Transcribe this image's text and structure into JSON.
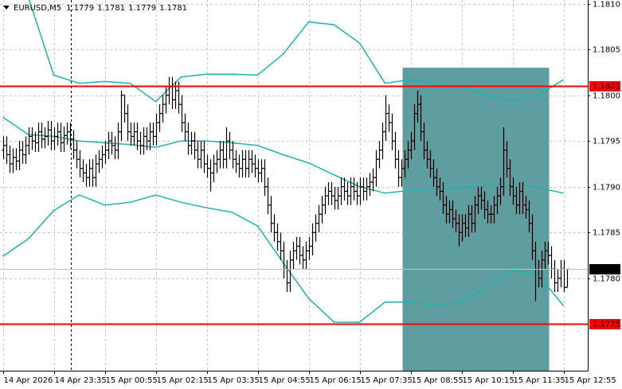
{
  "chart_data": {
    "type": "ohlc",
    "title": "EURUSD,M5",
    "color": "#000000",
    "grid": true,
    "ylim": [
      1.17699,
      1.18104
    ],
    "yticks": [
      {
        "value": 1.178,
        "label": "1.1780"
      },
      1.1785,
      {
        "value": 1.179,
        "label": "1.1790"
      },
      1.1795,
      {
        "value": 1.18,
        "label": "1.1800"
      },
      1.1805,
      {
        "value": 1.181,
        "label": "1.1810"
      }
    ],
    "categories": [
      "14 Apr 2026",
      null,
      null,
      null,
      null,
      null,
      null,
      null,
      null,
      null,
      null,
      null,
      null,
      null,
      null,
      null,
      "14 Apr 23:35",
      null,
      null,
      null,
      null,
      null,
      null,
      null,
      null,
      null,
      null,
      null,
      null,
      null,
      null,
      null,
      "15 Apr 00:55",
      null,
      null,
      null,
      null,
      null,
      null,
      null,
      null,
      null,
      null,
      null,
      null,
      null,
      null,
      null,
      "15 Apr 02:15",
      null,
      null,
      null,
      null,
      null,
      null,
      null,
      null,
      null,
      null,
      null,
      null,
      null,
      null,
      null,
      "15 Apr 03:35",
      null,
      null,
      null,
      null,
      null,
      null,
      null,
      null,
      null,
      null,
      null,
      null,
      null,
      null,
      null,
      "15 Apr 04:55",
      null,
      null,
      null,
      null,
      null,
      null,
      null,
      null,
      null,
      null,
      null,
      null,
      null,
      null,
      null,
      "15 Apr 06:15",
      null,
      null,
      null,
      null,
      null,
      null,
      null,
      null,
      null,
      null,
      null,
      null,
      null,
      null,
      null,
      "15 Apr 07:35",
      null,
      null,
      null,
      null,
      null,
      null,
      null,
      null,
      null,
      null,
      null,
      null,
      null,
      null,
      null,
      "15 Apr 08:55",
      null,
      null,
      null,
      null,
      null,
      null,
      null,
      null,
      null,
      null,
      null,
      null,
      null,
      null,
      null,
      "15 Apr 10:15",
      null,
      null,
      null,
      null,
      null,
      null,
      null,
      null,
      null,
      null,
      null,
      null,
      null,
      null,
      null,
      "15 Apr 11:35",
      null,
      null,
      null,
      null,
      null,
      null,
      null,
      null,
      null,
      null,
      null,
      null,
      null,
      null,
      null,
      "15 Apr 12:55",
      null
    ],
    "open": [
      1.1794,
      1.17945,
      1.17935,
      1.17925,
      1.17932,
      1.17928,
      1.1794,
      1.17935,
      1.17945,
      1.17955,
      1.1795,
      1.17948,
      1.1796,
      1.17952,
      1.17955,
      1.17962,
      1.1795,
      1.17955,
      1.1796,
      1.17948,
      1.17956,
      1.1796,
      1.17952,
      1.1794,
      1.1793,
      1.1792,
      1.17915,
      1.1791,
      1.1792,
      1.1791,
      1.17925,
      1.1793,
      1.17935,
      1.1794,
      1.1795,
      1.17945,
      1.1794,
      1.1796,
      1.18,
      1.1798,
      1.1796,
      1.17955,
      1.1796,
      1.1795,
      1.17945,
      1.17955,
      1.1795,
      1.1796,
      1.17955,
      1.1797,
      1.1798,
      1.1799,
      1.18,
      1.1801,
      1.17995,
      1.18005,
      1.1799,
      1.1797,
      1.1796,
      1.17945,
      1.1795,
      1.1794,
      1.1793,
      1.1794,
      1.17925,
      1.1792,
      1.17915,
      1.17925,
      1.1793,
      1.1794,
      1.1793,
      1.1795,
      1.1794,
      1.1793,
      1.17925,
      1.1792,
      1.1793,
      1.1792,
      1.1793,
      1.17925,
      1.1792,
      1.17915,
      1.1792,
      1.179,
      1.1788,
      1.1786,
      1.1785,
      1.1784,
      1.1783,
      1.1781,
      1.17795,
      1.1782,
      1.1783,
      1.17835,
      1.17825,
      1.1782,
      1.1783,
      1.17835,
      1.1785,
      1.1786,
      1.1787,
      1.1788,
      1.1789,
      1.17895,
      1.1789,
      1.17885,
      1.1789,
      1.179,
      1.17895,
      1.1789,
      1.179,
      1.17895,
      1.1789,
      1.179,
      1.17895,
      1.179,
      1.17905,
      1.1791,
      1.1793,
      1.1794,
      1.1796,
      1.1798,
      1.1797,
      1.1795,
      1.1793,
      1.1791,
      1.1792,
      1.1793,
      1.1794,
      1.1795,
      1.1798,
      1.1799,
      1.1796,
      1.1794,
      1.1793,
      1.1792,
      1.1791,
      1.179,
      1.17895,
      1.1788,
      1.1787,
      1.17875,
      1.17865,
      1.1786,
      1.1785,
      1.1786,
      1.17855,
      1.1787,
      1.1786,
      1.1788,
      1.1789,
      1.17885,
      1.17875,
      1.1787,
      1.1787,
      1.1788,
      1.1789,
      1.179,
      1.1794,
      1.1792,
      1.179,
      1.1789,
      1.1788,
      1.17895,
      1.1788,
      1.17875,
      1.1786,
      1.1783,
      1.1781,
      1.178,
      1.1782,
      1.1783,
      1.17825,
      1.1781,
      1.17795,
      1.178,
      1.1781,
      1.1779
    ],
    "high": [
      1.17955,
      1.17955,
      1.17945,
      1.17942,
      1.17942,
      1.1795,
      1.1795,
      1.17955,
      1.17965,
      1.17965,
      1.1796,
      1.1797,
      1.1797,
      1.17965,
      1.17972,
      1.17972,
      1.17965,
      1.1797,
      1.1797,
      1.17966,
      1.1797,
      1.1797,
      1.17962,
      1.1795,
      1.1794,
      1.1793,
      1.17925,
      1.1793,
      1.1793,
      1.17935,
      1.1794,
      1.17945,
      1.1795,
      1.1796,
      1.1796,
      1.17955,
      1.1797,
      1.18005,
      1.18,
      1.1799,
      1.1797,
      1.1797,
      1.1797,
      1.1796,
      1.17965,
      1.17965,
      1.1797,
      1.1797,
      1.1798,
      1.1799,
      1.18,
      1.1801,
      1.1802,
      1.1802,
      1.18015,
      1.18015,
      1.18,
      1.1798,
      1.1797,
      1.1796,
      1.1796,
      1.1795,
      1.1795,
      1.1795,
      1.17935,
      1.1793,
      1.17935,
      1.1794,
      1.1795,
      1.1795,
      1.17965,
      1.1796,
      1.1795,
      1.1794,
      1.17935,
      1.1794,
      1.1794,
      1.1794,
      1.1794,
      1.17935,
      1.1793,
      1.1793,
      1.1793,
      1.1791,
      1.1789,
      1.1787,
      1.1786,
      1.1785,
      1.1784,
      1.1782,
      1.1783,
      1.1784,
      1.17845,
      1.17845,
      1.17835,
      1.1784,
      1.17845,
      1.1786,
      1.1787,
      1.1788,
      1.1789,
      1.179,
      1.17905,
      1.17905,
      1.179,
      1.179,
      1.1791,
      1.1791,
      1.17905,
      1.1791,
      1.1791,
      1.17905,
      1.1791,
      1.1791,
      1.1791,
      1.17915,
      1.1792,
      1.1794,
      1.1795,
      1.1797,
      1.18,
      1.1799,
      1.1798,
      1.1796,
      1.1794,
      1.1793,
      1.1794,
      1.1795,
      1.1796,
      1.1799,
      1.18005,
      1.18,
      1.1797,
      1.1795,
      1.1794,
      1.1793,
      1.1792,
      1.1791,
      1.17905,
      1.1789,
      1.17885,
      1.17885,
      1.17875,
      1.1787,
      1.1787,
      1.1787,
      1.1788,
      1.1788,
      1.1789,
      1.179,
      1.179,
      1.17895,
      1.17885,
      1.1788,
      1.1789,
      1.179,
      1.1791,
      1.17965,
      1.1795,
      1.1793,
      1.1791,
      1.179,
      1.17905,
      1.17905,
      1.1789,
      1.17885,
      1.1787,
      1.1784,
      1.1782,
      1.1783,
      1.1784,
      1.1784,
      1.17835,
      1.1782,
      1.1781,
      1.1782,
      1.1782,
      1.1781
    ],
    "low": [
      1.1793,
      1.17925,
      1.17915,
      1.17915,
      1.17918,
      1.17918,
      1.17925,
      1.17925,
      1.17935,
      1.1794,
      1.17938,
      1.17938,
      1.17942,
      1.17942,
      1.17945,
      1.1794,
      1.1794,
      1.17945,
      1.17938,
      1.17938,
      1.17946,
      1.17942,
      1.1793,
      1.1792,
      1.1791,
      1.17905,
      1.179,
      1.179,
      1.179,
      1.179,
      1.17915,
      1.1792,
      1.17925,
      1.1793,
      1.17935,
      1.1793,
      1.1793,
      1.1795,
      1.1797,
      1.1795,
      1.17945,
      1.17945,
      1.1794,
      1.17935,
      1.17935,
      1.1794,
      1.1794,
      1.17945,
      1.17945,
      1.1796,
      1.1797,
      1.1798,
      1.1799,
      1.17985,
      1.17985,
      1.1798,
      1.1796,
      1.1795,
      1.17935,
      1.17935,
      1.1793,
      1.1792,
      1.1792,
      1.17915,
      1.1791,
      1.17895,
      1.17905,
      1.17915,
      1.1792,
      1.1792,
      1.1792,
      1.1793,
      1.1792,
      1.17915,
      1.1791,
      1.1791,
      1.1791,
      1.1791,
      1.17915,
      1.1791,
      1.17905,
      1.17905,
      1.1789,
      1.1787,
      1.1785,
      1.1784,
      1.1783,
      1.1782,
      1.178,
      1.17785,
      1.17785,
      1.1781,
      1.1782,
      1.17815,
      1.1781,
      1.1781,
      1.1782,
      1.17825,
      1.1784,
      1.1785,
      1.1786,
      1.1787,
      1.1788,
      1.1788,
      1.17875,
      1.17875,
      1.1788,
      1.17885,
      1.1788,
      1.1788,
      1.17885,
      1.1788,
      1.1788,
      1.17885,
      1.17885,
      1.1789,
      1.17895,
      1.179,
      1.1792,
      1.1793,
      1.1795,
      1.1796,
      1.1794,
      1.1792,
      1.179,
      1.179,
      1.1791,
      1.1792,
      1.1793,
      1.1794,
      1.1797,
      1.1795,
      1.1793,
      1.1792,
      1.1791,
      1.179,
      1.1789,
      1.17885,
      1.1787,
      1.1786,
      1.1786,
      1.17855,
      1.1785,
      1.17835,
      1.1784,
      1.17845,
      1.17845,
      1.1785,
      1.1785,
      1.1787,
      1.17875,
      1.17865,
      1.1786,
      1.1786,
      1.1786,
      1.1787,
      1.1788,
      1.1789,
      1.1791,
      1.1789,
      1.1788,
      1.1787,
      1.1787,
      1.1787,
      1.17865,
      1.1785,
      1.1782,
      1.17775,
      1.1779,
      1.1779,
      1.1781,
      1.17815,
      1.178,
      1.17785,
      1.17785,
      1.1779,
      1.17785,
      1.1779
    ],
    "close": [
      1.17945,
      1.17935,
      1.17925,
      1.17932,
      1.17928,
      1.1794,
      1.17935,
      1.17945,
      1.17955,
      1.1795,
      1.17948,
      1.1796,
      1.17952,
      1.17955,
      1.17962,
      1.1795,
      1.17955,
      1.1796,
      1.17948,
      1.17956,
      1.1796,
      1.17952,
      1.1794,
      1.1793,
      1.1792,
      1.17915,
      1.1791,
      1.1792,
      1.1791,
      1.17925,
      1.1793,
      1.17935,
      1.1794,
      1.1795,
      1.17945,
      1.1794,
      1.1796,
      1.18,
      1.1798,
      1.1796,
      1.17955,
      1.1796,
      1.1795,
      1.17945,
      1.17955,
      1.1795,
      1.1796,
      1.17955,
      1.1797,
      1.1798,
      1.1799,
      1.18,
      1.1801,
      1.17995,
      1.18005,
      1.1799,
      1.1797,
      1.1796,
      1.17945,
      1.1795,
      1.1794,
      1.1793,
      1.1794,
      1.17925,
      1.1792,
      1.17915,
      1.17925,
      1.1793,
      1.1794,
      1.1793,
      1.1795,
      1.1794,
      1.1793,
      1.17925,
      1.1792,
      1.1793,
      1.1792,
      1.1793,
      1.17925,
      1.1792,
      1.17915,
      1.1792,
      1.179,
      1.1788,
      1.1786,
      1.1785,
      1.1784,
      1.1783,
      1.1781,
      1.17795,
      1.1782,
      1.1783,
      1.17835,
      1.17825,
      1.1782,
      1.1783,
      1.17835,
      1.1785,
      1.1786,
      1.1787,
      1.1788,
      1.1789,
      1.17895,
      1.1789,
      1.17885,
      1.1789,
      1.179,
      1.17895,
      1.1789,
      1.179,
      1.17895,
      1.1789,
      1.179,
      1.17895,
      1.179,
      1.17905,
      1.1791,
      1.1793,
      1.1794,
      1.1796,
      1.1798,
      1.1797,
      1.1795,
      1.1793,
      1.1791,
      1.1792,
      1.1793,
      1.1794,
      1.1795,
      1.1798,
      1.1799,
      1.1796,
      1.1794,
      1.1793,
      1.1792,
      1.1791,
      1.179,
      1.17895,
      1.1788,
      1.1787,
      1.17875,
      1.17865,
      1.1786,
      1.1785,
      1.1786,
      1.17855,
      1.1787,
      1.1786,
      1.1788,
      1.1789,
      1.17885,
      1.17875,
      1.1787,
      1.1787,
      1.1788,
      1.1789,
      1.179,
      1.1794,
      1.1792,
      1.179,
      1.1789,
      1.1788,
      1.17895,
      1.1788,
      1.17875,
      1.1786,
      1.1783,
      1.1781,
      1.178,
      1.1782,
      1.1783,
      1.17825,
      1.1781,
      1.17795,
      1.178,
      1.1781,
      1.1779,
      1.1781
    ],
    "bands": {
      "color": "#20b2aa",
      "x": [
        0,
        8,
        16,
        24,
        32,
        40,
        48,
        56,
        64,
        72,
        80,
        88,
        96,
        104,
        112,
        120,
        128,
        136,
        144,
        152,
        160,
        168,
        176
      ],
      "upper": [
        1.18139,
        1.18107,
        1.18022,
        1.18013,
        1.18015,
        1.18013,
        1.17993,
        1.1802,
        1.18023,
        1.18023,
        1.18022,
        1.18045,
        1.1808,
        1.18077,
        1.18057,
        1.18013,
        1.18017,
        1.18013,
        1.18009,
        1.18,
        1.17994,
        1.18,
        1.18017
      ],
      "middle": [
        1.17976,
        1.17957,
        1.17955,
        1.1795,
        1.17948,
        1.17946,
        1.17943,
        1.1795,
        1.1795,
        1.17948,
        1.17945,
        1.17935,
        1.17926,
        1.17913,
        1.179,
        1.17893,
        1.17896,
        1.17897,
        1.17899,
        1.17901,
        1.17902,
        1.17899,
        1.17893
      ],
      "lower": [
        1.17824,
        1.17843,
        1.17874,
        1.17891,
        1.1788,
        1.17883,
        1.17891,
        1.17883,
        1.17877,
        1.17872,
        1.17857,
        1.17817,
        1.17778,
        1.17752,
        1.17752,
        1.17774,
        1.17774,
        1.1777,
        1.17774,
        1.17791,
        1.17809,
        1.17804,
        1.1777
      ]
    },
    "levels": [
      {
        "value": 1.1801,
        "color": "#ff0000"
      },
      {
        "value": 1.1775,
        "color": "#ff0000"
      }
    ],
    "zone": {
      "x": [
        126,
        171
      ],
      "top": 1.1803,
      "color": "#5f9ea0"
    },
    "separator_x": 21.25
  }
}
